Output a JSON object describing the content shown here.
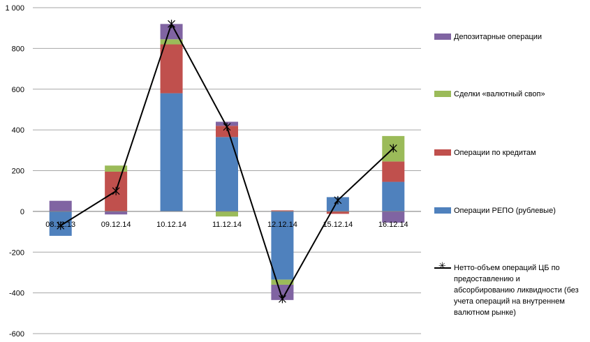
{
  "chart_data": {
    "type": "bar",
    "stacked": true,
    "categories": [
      "08.12.13",
      "09.12.14",
      "10.12.14",
      "11.12.14",
      "12.12.14",
      "15.12.14",
      "16.12.14"
    ],
    "ylim": [
      -600,
      1000
    ],
    "yticks": [
      -600,
      -400,
      -200,
      0,
      200,
      400,
      600,
      800,
      1000
    ],
    "ytick_labels": [
      "-600",
      "-400",
      "-200",
      "0",
      "200",
      "400",
      "600",
      "800",
      "1 000"
    ],
    "grid": true,
    "legend_position": "right",
    "series": [
      {
        "name": "Операции РЕПО (рублевые)",
        "color": "#4f81bd",
        "values": [
          -120,
          0,
          580,
          365,
          -335,
          70,
          145
        ]
      },
      {
        "name": "Операции по кредитам",
        "color": "#c0504d",
        "values": [
          0,
          195,
          240,
          55,
          5,
          -12,
          100
        ]
      },
      {
        "name": "Сделки «валютный своп»",
        "color": "#9bbb59",
        "values": [
          0,
          30,
          25,
          -25,
          -25,
          0,
          125
        ]
      },
      {
        "name": "Депозитарные операции",
        "color": "#8064a2",
        "values": [
          52,
          -15,
          75,
          20,
          -75,
          0,
          -55
        ]
      }
    ],
    "line": {
      "name": "Нетто-объем операций ЦБ по предоставлению и абсорбированию ликвидности (без учета операций на внутреннем валютном рынке)",
      "color": "#000000",
      "values": [
        -70,
        100,
        920,
        415,
        -430,
        55,
        310
      ]
    }
  },
  "legend": [
    {
      "key": "depo",
      "label": "Депозитарные операции",
      "color": "#8064a2"
    },
    {
      "key": "swap",
      "label": "Сделки «валютный своп»",
      "color": "#9bbb59"
    },
    {
      "key": "credit",
      "label": "Операции по кредитам",
      "color": "#c0504d"
    },
    {
      "key": "repo",
      "label": "Операции РЕПО (рублевые)",
      "color": "#4f81bd"
    },
    {
      "key": "net",
      "label": "Нетто-объем операций ЦБ по предоставлению и абсорбированию ликвидности (без учета операций на внутреннем валютном рынке)",
      "color": "#000000"
    }
  ]
}
